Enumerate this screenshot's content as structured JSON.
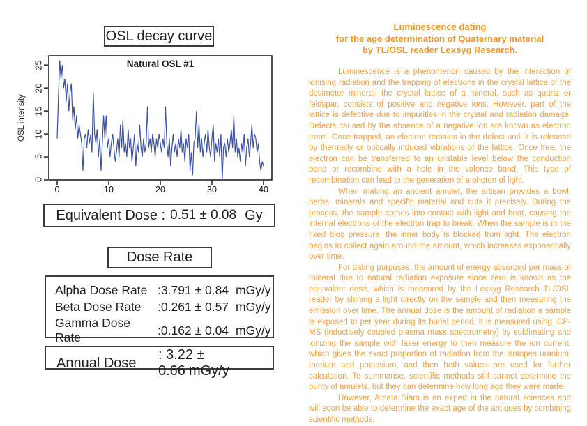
{
  "left_panel": {
    "decay_title": "OSL decay curve",
    "equivalent_dose": {
      "label": "Equivalent Dose :",
      "value": "0.51 ± 0.08",
      "unit": "Gy"
    },
    "dose_rate_title": "Dose Rate",
    "dose_rates": [
      {
        "label": "Alpha Dose Rate",
        "value": ":3.791 ± 0.84",
        "unit": "mGy/y"
      },
      {
        "label": "Beta Dose Rate",
        "value": ":0.261 ± 0.57",
        "unit": "mGy/y"
      },
      {
        "label": "Gamma Dose Rate",
        "value": ":0.162 ± 0.04",
        "unit": "mGy/y"
      }
    ],
    "annual_dose": {
      "label": "Annual Dose",
      "value": ": 3.22 ± 0.66",
      "unit": "mGy/y"
    }
  },
  "chart_data": {
    "type": "line",
    "title": "Natural OSL #1",
    "xlabel": "",
    "ylabel": "OSL intensity",
    "x_ticks": [
      0,
      10,
      20,
      30,
      40
    ],
    "y_ticks": [
      0,
      5,
      10,
      15,
      20,
      25
    ],
    "xlim": [
      0,
      40
    ],
    "ylim": [
      0,
      27
    ],
    "grid": false,
    "legend": "none",
    "line_color": "#3B51A5",
    "x_start": 0,
    "x_step": 0.25,
    "values": [
      9,
      18,
      26,
      22,
      25,
      20,
      22,
      17,
      21,
      15,
      19,
      21,
      13,
      16,
      11,
      14,
      9,
      12,
      10,
      8,
      2,
      9,
      10,
      7,
      11,
      8,
      10,
      6,
      19,
      10,
      8,
      11,
      5,
      9,
      2,
      8,
      14,
      9,
      14,
      7,
      9,
      5,
      8,
      10,
      7,
      4,
      6,
      9,
      5,
      12,
      7,
      13,
      6,
      8,
      5,
      11,
      7,
      9,
      4,
      7,
      10,
      3,
      8,
      6,
      12,
      7,
      5,
      9,
      6,
      8,
      16,
      7,
      9,
      6,
      10,
      8,
      5,
      9,
      7,
      10,
      8,
      6,
      9,
      7,
      16,
      8,
      5,
      9,
      3,
      7,
      10,
      6,
      8,
      5,
      9,
      7,
      11,
      6,
      8,
      4,
      9,
      7,
      10,
      2,
      6,
      1,
      8,
      9,
      15,
      7,
      12,
      6,
      9,
      5,
      8,
      10,
      6,
      11,
      7,
      5,
      9,
      12,
      4,
      8,
      6,
      9,
      5,
      10,
      0,
      7,
      8,
      5,
      9,
      6,
      8,
      11,
      7,
      14,
      6,
      9,
      5,
      7,
      4,
      8,
      6,
      10,
      3,
      7,
      9,
      5,
      8,
      12,
      7,
      10,
      9,
      6,
      8,
      4,
      2,
      4,
      3
    ]
  },
  "right_panel": {
    "title_color": "#F7941E",
    "body_color": "#F8A040",
    "title_lines": [
      "Luminescence dating",
      "for the age determination of Quaternary material",
      "by TL/OSL reader Lexsyg Research."
    ],
    "paragraphs": [
      "Luminescence is a phenomenon caused by the interaction of ionising radiation and the trapping of electrons in the crystal lattice of the dosimeter mineral. the crystal lattice of a mineral, such as quartz or feldspar, consists of positive and negative ions. However, part of the lattice is defective due to impurities in the crystal and radiation damage. Defects caused by the absence of a negative ion are known as electron traps. Once trapped, an electron remains in the defect until it is released by thermally or optically induced vibrations of the lattice. Once free, the electron can be transferred to an unstable level below the conduction band or recombine with a hole in the valence band. This type of recombination can lead to the generation of a photon of light.",
      "When making an ancient amulet, the artisan provides a bowl, herbs, minerals and specific material and cuts it precisely. During the process, the sample comes into contact with light and heat, causing the internal electrons of the electron trap to break. When the sample is in the fixed blog pressure, the inner body is blocked from light. The electron begins to collect again around the amount, which increases exponentially over time.",
      "For dating purposes, the amount of energy absorbed per mass of mineral due to natural radiation exposure since zero is known as the equivalent dose, which is measured by the Lexsyg Research TL/OSL reader by shining a light directly on the sample and then measuring the emission over time. The annual dose is the amount of radiation a sample is exposed to per year during its burial period. It is measured using ICP-MS (inductively coupled plasma mass spectrometry) by sublimating and ionizing the sample with laser energy to then measure the ion current, which gives the exact proportion of radiation from the isotopes uranium, thorium and potassium, and then both values are used for further calculation. To summarise, scientific methods still cannot determine the purity of amulets, but they can determine how long ago they were made.",
      "However, Amata Siam is an expert in the natural sciences and will soon be able to determine the exact age of the antiques by combining scientific methods."
    ]
  }
}
